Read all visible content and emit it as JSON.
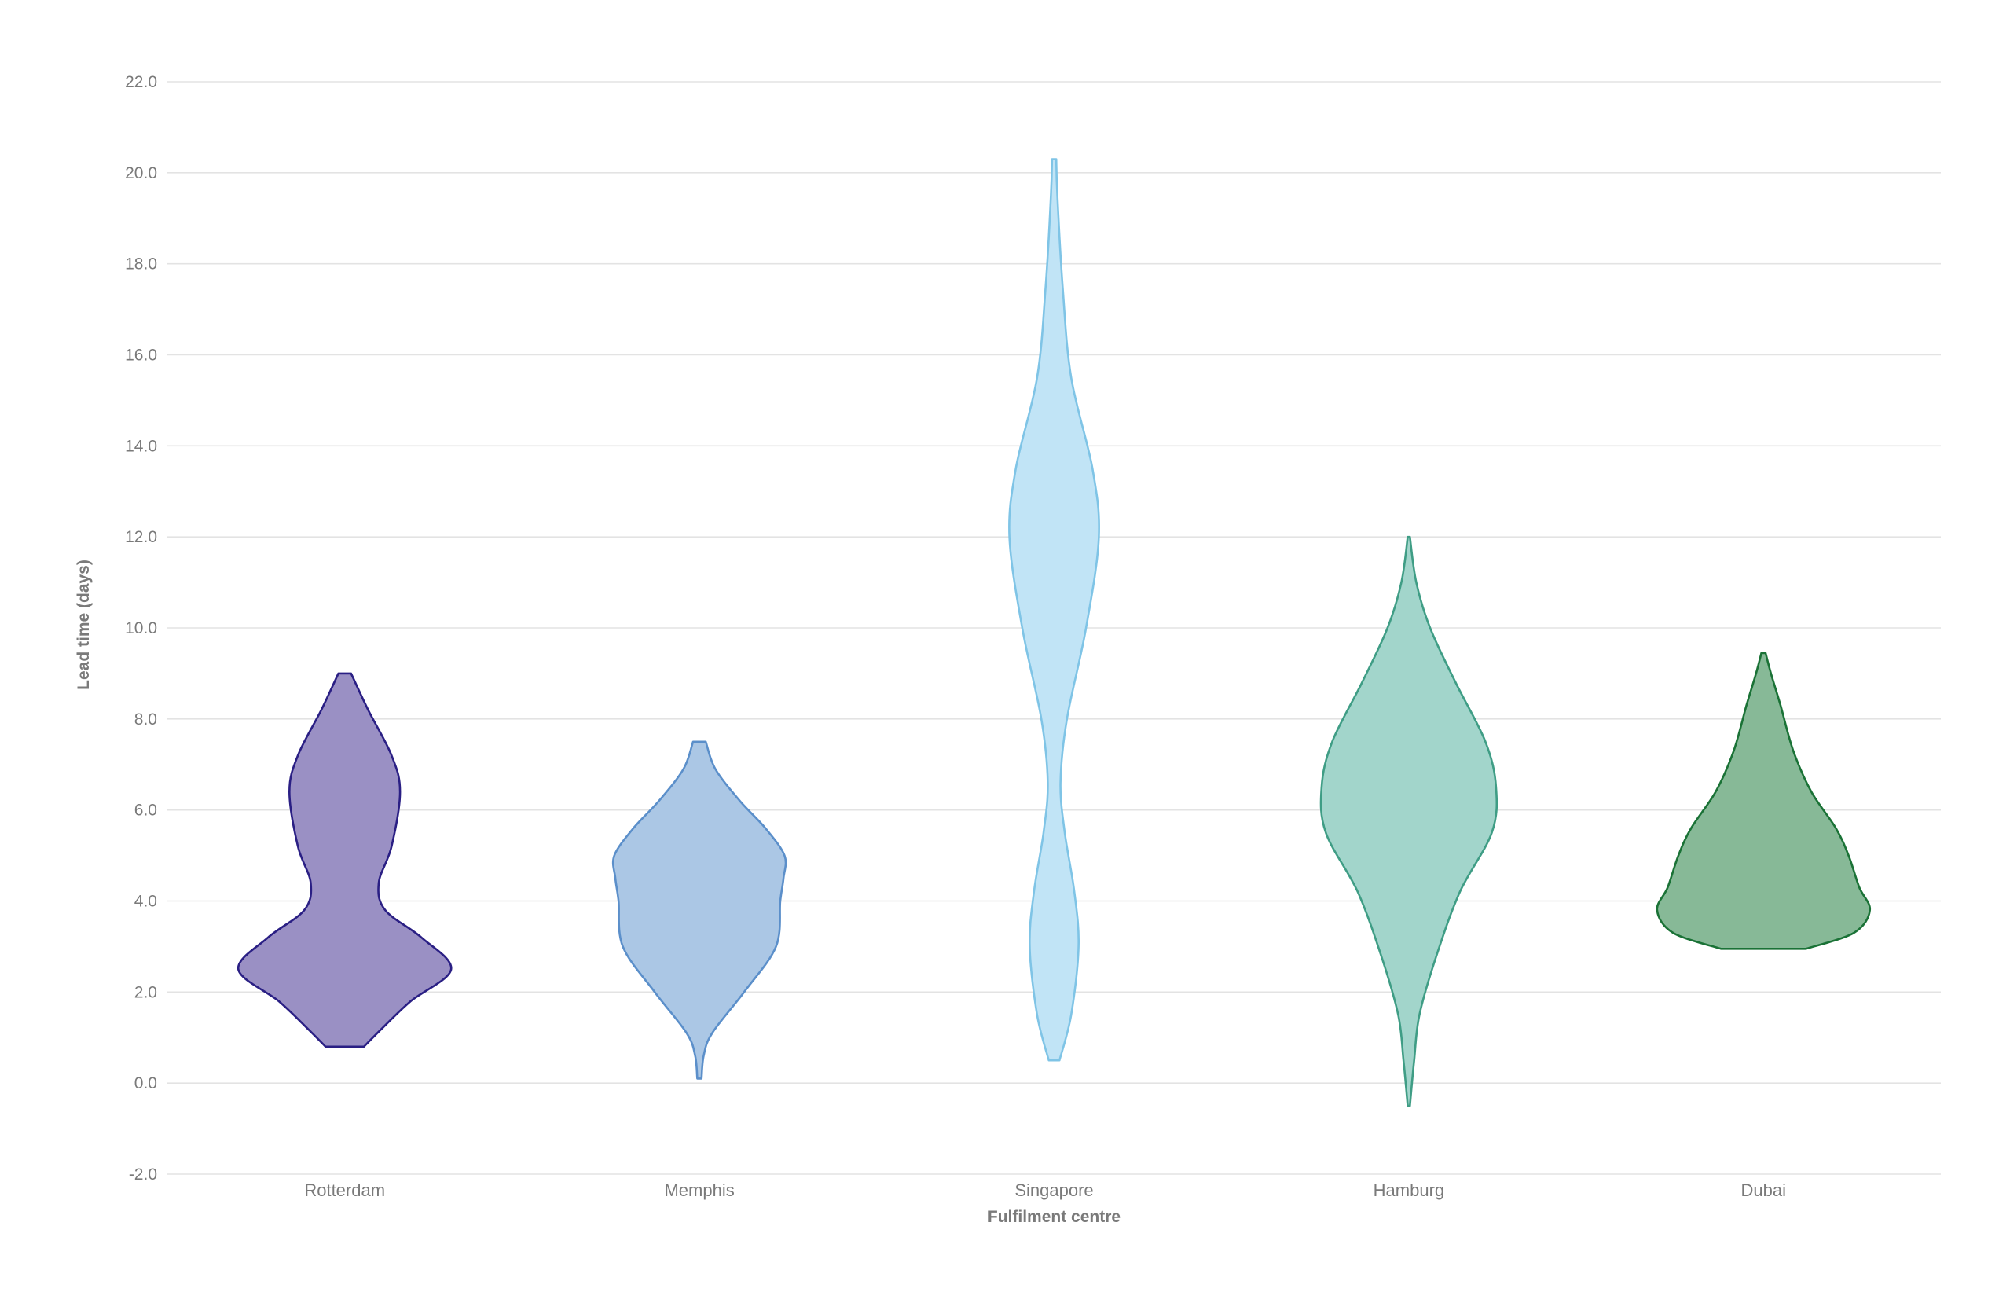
{
  "chart_data": {
    "type": "violin",
    "xlabel": "Fulfilment centre",
    "ylabel": "Lead time (days)",
    "ylim": [
      -2.0,
      22.0
    ],
    "yticks": [
      "-2.0",
      "0.0",
      "2.0",
      "4.0",
      "6.0",
      "8.0",
      "10.0",
      "12.0",
      "14.0",
      "16.0",
      "18.0",
      "20.0",
      "22.0"
    ],
    "grid": true,
    "categories": [
      "Rotterdam",
      "Memphis",
      "Singapore",
      "Hamburg",
      "Dubai"
    ],
    "series": [
      {
        "category": "Rotterdam",
        "fill": "#9a90c4",
        "stroke": "#2a1f84",
        "min": 0.8,
        "max": 9.0,
        "density": [
          [
            0.8,
            0.18
          ],
          [
            1.2,
            0.35
          ],
          [
            1.8,
            0.62
          ],
          [
            2.5,
            1.0
          ],
          [
            3.2,
            0.72
          ],
          [
            3.8,
            0.38
          ],
          [
            4.4,
            0.32
          ],
          [
            5.2,
            0.44
          ],
          [
            6.4,
            0.52
          ],
          [
            7.2,
            0.44
          ],
          [
            8.2,
            0.22
          ],
          [
            9.0,
            0.06
          ]
        ]
      },
      {
        "category": "Memphis",
        "fill": "#abc7e5",
        "stroke": "#5b8fca",
        "min": 0.1,
        "max": 7.5,
        "density": [
          [
            0.1,
            0.02
          ],
          [
            0.6,
            0.04
          ],
          [
            1.1,
            0.12
          ],
          [
            2.0,
            0.42
          ],
          [
            3.0,
            0.72
          ],
          [
            4.0,
            0.76
          ],
          [
            4.5,
            0.79
          ],
          [
            5.0,
            0.8
          ],
          [
            5.6,
            0.62
          ],
          [
            6.2,
            0.38
          ],
          [
            6.9,
            0.15
          ],
          [
            7.5,
            0.06
          ]
        ]
      },
      {
        "category": "Singapore",
        "fill": "#c1e4f6",
        "stroke": "#7fc4e6",
        "min": 0.5,
        "max": 20.3,
        "density": [
          [
            0.5,
            0.05
          ],
          [
            1.5,
            0.16
          ],
          [
            3.0,
            0.23
          ],
          [
            4.2,
            0.19
          ],
          [
            5.5,
            0.1
          ],
          [
            6.6,
            0.06
          ],
          [
            8.0,
            0.12
          ],
          [
            10.0,
            0.3
          ],
          [
            12.0,
            0.42
          ],
          [
            13.5,
            0.36
          ],
          [
            15.5,
            0.16
          ],
          [
            17.5,
            0.08
          ],
          [
            19.5,
            0.03
          ],
          [
            20.3,
            0.02
          ]
        ]
      },
      {
        "category": "Hamburg",
        "fill": "#a2d5cb",
        "stroke": "#3f9d85",
        "min": -0.5,
        "max": 12.0,
        "density": [
          [
            -0.5,
            0.01
          ],
          [
            0.5,
            0.05
          ],
          [
            1.5,
            0.1
          ],
          [
            2.8,
            0.26
          ],
          [
            4.2,
            0.48
          ],
          [
            5.5,
            0.78
          ],
          [
            6.5,
            0.82
          ],
          [
            7.5,
            0.72
          ],
          [
            8.8,
            0.44
          ],
          [
            10.0,
            0.2
          ],
          [
            11.0,
            0.07
          ],
          [
            12.0,
            0.01
          ]
        ]
      },
      {
        "category": "Dubai",
        "fill": "#87b997",
        "stroke": "#1a7236",
        "min": 2.95,
        "max": 9.45,
        "density": [
          [
            2.95,
            0.4
          ],
          [
            3.3,
            0.85
          ],
          [
            3.8,
            1.0
          ],
          [
            4.3,
            0.9
          ],
          [
            5.0,
            0.8
          ],
          [
            5.6,
            0.68
          ],
          [
            6.4,
            0.45
          ],
          [
            7.3,
            0.28
          ],
          [
            8.3,
            0.16
          ],
          [
            9.0,
            0.07
          ],
          [
            9.45,
            0.02
          ]
        ]
      }
    ]
  }
}
